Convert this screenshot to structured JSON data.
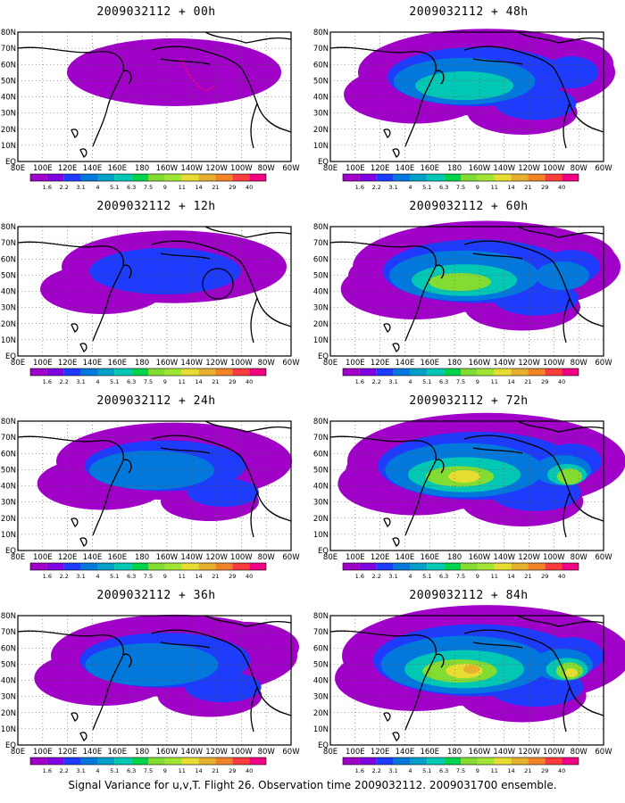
{
  "figure": {
    "caption": "Signal Variance for u,v,T. Flight 26. Observation time 2009032112. 2009031700 ensemble."
  },
  "map": {
    "lat_labels": [
      "80N",
      "70N",
      "60N",
      "50N",
      "40N",
      "30N",
      "20N",
      "10N",
      "EQ"
    ],
    "lon_labels": [
      "80E",
      "100E",
      "120E",
      "140E",
      "160E",
      "180",
      "160W",
      "140W",
      "120W",
      "100W",
      "80W",
      "60W"
    ],
    "land_color": "#ffffff",
    "coast_color": "#000000",
    "grid": "dotted"
  },
  "colorbar": {
    "levels": [
      "1.6",
      "2.2",
      "3.1",
      "4",
      "5.1",
      "6.3",
      "7.5",
      "9",
      "11",
      "14",
      "21",
      "29",
      "40"
    ],
    "colors": [
      "#a000c8",
      "#7f00e0",
      "#1e3cff",
      "#0078dc",
      "#00a0c8",
      "#00c8b4",
      "#00d250",
      "#82dc32",
      "#a0e632",
      "#e6dc32",
      "#e6af2d",
      "#f08228",
      "#fa3c3c",
      "#f00082"
    ]
  },
  "panels": [
    {
      "title": "2009032112 + 00h",
      "intensity": 0,
      "has_track": true,
      "has_circle": false
    },
    {
      "title": "2009032112 + 48h",
      "intensity": 4,
      "has_track": false,
      "has_circle": false
    },
    {
      "title": "2009032112 + 12h",
      "intensity": 1,
      "has_track": false,
      "has_circle": true
    },
    {
      "title": "2009032112 + 60h",
      "intensity": 5,
      "has_track": false,
      "has_circle": false
    },
    {
      "title": "2009032112 + 24h",
      "intensity": 2,
      "has_track": false,
      "has_circle": false
    },
    {
      "title": "2009032112 + 72h",
      "intensity": 6,
      "has_track": false,
      "has_circle": false
    },
    {
      "title": "2009032112 + 36h",
      "intensity": 3,
      "has_track": false,
      "has_circle": false
    },
    {
      "title": "2009032112 + 84h",
      "intensity": 7,
      "has_track": false,
      "has_circle": false
    }
  ]
}
